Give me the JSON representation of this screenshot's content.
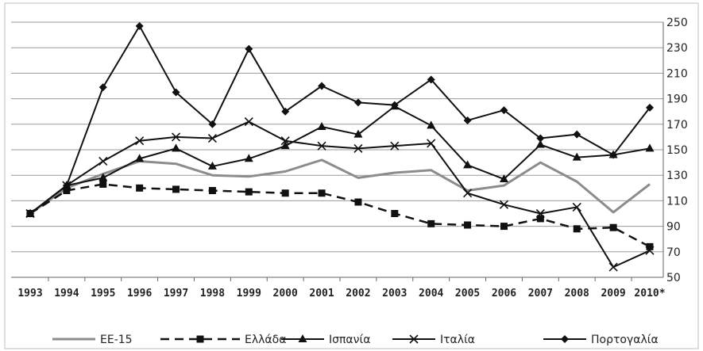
{
  "chart_data": {
    "type": "line",
    "title": "",
    "xlabel": "",
    "ylabel": "",
    "categories": [
      "1993",
      "1994",
      "1995",
      "1996",
      "1997",
      "1998",
      "1999",
      "2000",
      "2001",
      "2002",
      "2003",
      "2004",
      "2005",
      "2006",
      "2007",
      "2008",
      "2009",
      "2010*"
    ],
    "ylim": [
      50,
      250
    ],
    "yticks": [
      50,
      70,
      90,
      110,
      130,
      150,
      170,
      190,
      210,
      230,
      250
    ],
    "ytick_labels": [
      "50",
      "70",
      "90",
      "110",
      "130",
      "150",
      "170",
      "190",
      "210",
      "230",
      "250"
    ],
    "grid": "horizontal",
    "legend_position": "bottom",
    "series": [
      {
        "name": "ΕΕ-15",
        "color": "#8c8c8c",
        "dash": "solid",
        "marker": "none",
        "values": [
          100,
          120,
          131,
          141,
          139,
          130,
          129,
          133,
          142,
          128,
          132,
          134,
          118,
          122,
          140,
          125,
          101,
          123
        ]
      },
      {
        "name": "Ελλάδα",
        "color": "#111111",
        "dash": "dashed",
        "marker": "square",
        "values": [
          100,
          118,
          123,
          120,
          119,
          118,
          117,
          116,
          116,
          109,
          100,
          92,
          91,
          90,
          96,
          88,
          89,
          74
        ]
      },
      {
        "name": "Ισπανία",
        "color": "#111111",
        "dash": "solid",
        "marker": "triangle",
        "values": [
          100,
          122,
          128,
          143,
          151,
          137,
          143,
          153,
          168,
          162,
          184,
          169,
          138,
          127,
          154,
          144,
          146,
          151
        ]
      },
      {
        "name": "Ιταλία",
        "color": "#111111",
        "dash": "solid",
        "marker": "x",
        "values": [
          100,
          122,
          141,
          157,
          160,
          159,
          172,
          157,
          153,
          151,
          153,
          155,
          116,
          107,
          100,
          105,
          58,
          71
        ]
      },
      {
        "name": "Πορτογαλία",
        "color": "#111111",
        "dash": "solid",
        "marker": "diamond",
        "values": [
          100,
          122,
          199,
          247,
          195,
          170,
          229,
          180,
          200,
          187,
          185,
          205,
          173,
          181,
          159,
          162,
          146,
          183
        ]
      }
    ]
  }
}
